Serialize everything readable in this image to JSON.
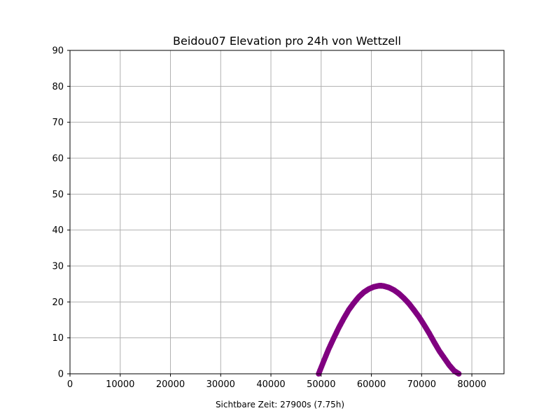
{
  "chart_data": {
    "type": "scatter",
    "title": "Beidou07 Elevation pro 24h von Wettzell",
    "xlabel": "",
    "ylabel": "",
    "footnote": "Sichtbare Zeit: 27900s (7.75h)",
    "xlim": [
      0,
      86400
    ],
    "ylim": [
      0,
      90
    ],
    "xticks": [
      0,
      10000,
      20000,
      30000,
      40000,
      50000,
      60000,
      70000,
      80000
    ],
    "xtick_labels": [
      "0",
      "10000",
      "20000",
      "30000",
      "40000",
      "50000",
      "60000",
      "70000",
      "80000"
    ],
    "yticks": [
      0,
      10,
      20,
      30,
      40,
      50,
      60,
      70,
      80,
      90
    ],
    "ytick_labels": [
      "0",
      "10",
      "20",
      "30",
      "40",
      "50",
      "60",
      "70",
      "80",
      "90"
    ],
    "grid": true,
    "series": [
      {
        "color": "#800080",
        "x": [
          49500,
          50500,
          51500,
          52500,
          53500,
          54500,
          55500,
          56500,
          57500,
          58500,
          59500,
          60500,
          61500,
          62000,
          62500,
          63500,
          64500,
          65500,
          66500,
          67500,
          68500,
          69500,
          70500,
          71500,
          72500,
          73500,
          74500,
          75500,
          76500,
          77400
        ],
        "y": [
          0.0,
          3.5,
          6.9,
          9.9,
          12.8,
          15.4,
          17.8,
          19.7,
          21.4,
          22.7,
          23.6,
          24.2,
          24.5,
          24.5,
          24.4,
          24.0,
          23.3,
          22.3,
          21.0,
          19.5,
          17.7,
          15.8,
          13.6,
          11.3,
          8.8,
          6.4,
          4.4,
          2.4,
          0.8,
          0.0
        ]
      }
    ]
  }
}
